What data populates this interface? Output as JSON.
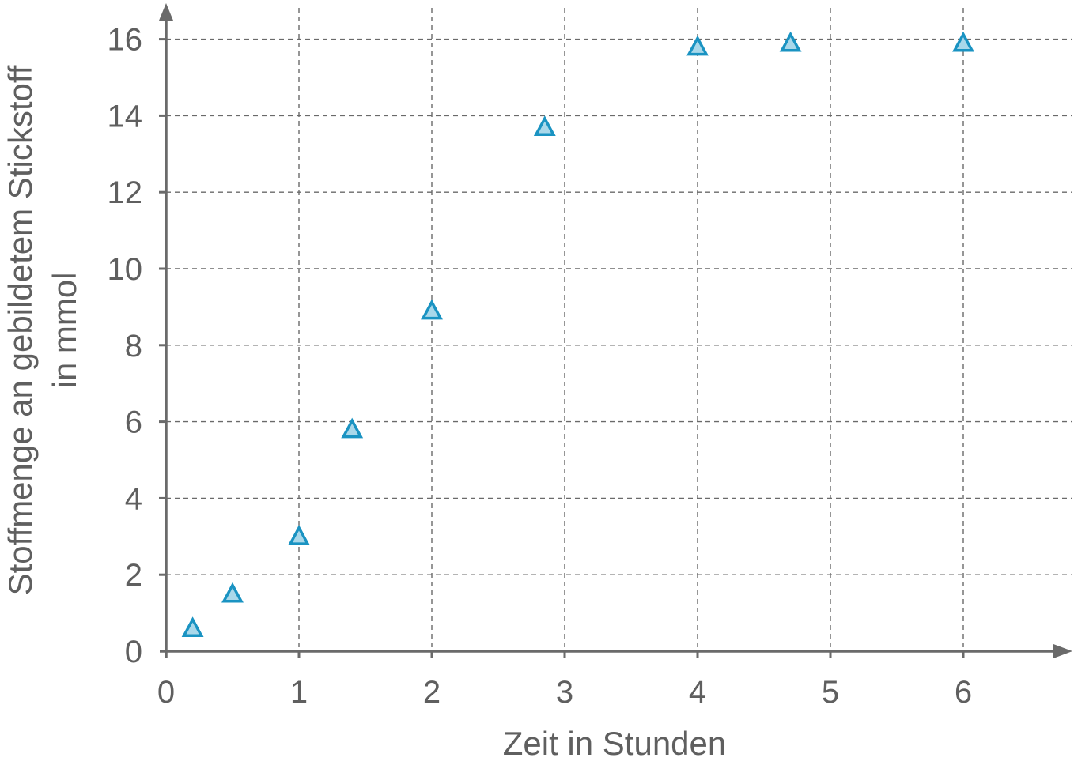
{
  "chart_data": {
    "type": "scatter",
    "xlabel": "Zeit in Stunden",
    "ylabel_lines": [
      "Stoffmenge an gebildetem Stickstoff",
      "in mmol"
    ],
    "xlim": [
      0,
      6.8
    ],
    "ylim": [
      0,
      16.8
    ],
    "x_ticks": [
      0,
      1,
      2,
      3,
      4,
      5,
      6
    ],
    "y_ticks": [
      0,
      2,
      4,
      6,
      8,
      10,
      12,
      14,
      16
    ],
    "grid": true,
    "marker": "triangle",
    "colors": {
      "marker_fill": "#a9d8ea",
      "marker_stroke": "#1a93c2",
      "axis": "#6a6a6a",
      "text": "#5f5f5f"
    },
    "points": [
      {
        "x": 0.2,
        "y": 0.6
      },
      {
        "x": 0.5,
        "y": 1.5
      },
      {
        "x": 1.0,
        "y": 3.0
      },
      {
        "x": 1.4,
        "y": 5.8
      },
      {
        "x": 2.0,
        "y": 8.9
      },
      {
        "x": 2.85,
        "y": 13.7
      },
      {
        "x": 4.0,
        "y": 15.8
      },
      {
        "x": 4.7,
        "y": 15.9
      },
      {
        "x": 6.0,
        "y": 15.9
      }
    ]
  }
}
